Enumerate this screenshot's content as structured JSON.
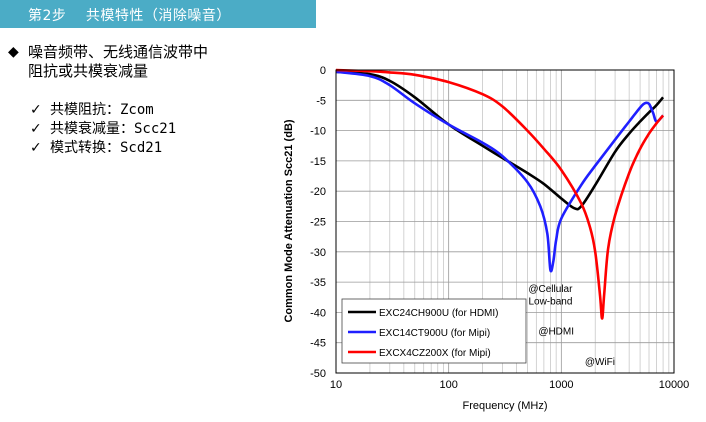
{
  "header": {
    "title": "第2步　 共模特性（消除噪音）"
  },
  "main_bullet": {
    "line1": "噪音频带、无线通信波带中",
    "line2": "阻抗或共模衰减量"
  },
  "sub_items": [
    {
      "label": "共模阻抗：Zcom"
    },
    {
      "label": "共模衰减量：Scc21"
    },
    {
      "label": "模式转换：Scd21"
    }
  ],
  "chart_data": {
    "type": "line",
    "xlabel": "Frequency (MHz)",
    "ylabel": "Common Mode Attenuation Scc21 (dB)",
    "x_scale": "log",
    "xlim": [
      10,
      10000
    ],
    "ylim": [
      -50,
      0
    ],
    "x_ticks": [
      "10",
      "100",
      "1000",
      "10000"
    ],
    "y_ticks": [
      "0",
      "-5",
      "-10",
      "-15",
      "-20",
      "-25",
      "-30",
      "-35",
      "-40",
      "-45",
      "-50"
    ],
    "grid": true,
    "legend_position": "bottom-left",
    "series": [
      {
        "name": "EXC24CH900U (for HDMI)",
        "color": "#000000",
        "x": [
          10,
          20,
          30,
          50,
          100,
          200,
          300,
          500,
          700,
          1000,
          1300,
          1500,
          2000,
          3000,
          4000,
          5000,
          6000,
          7000,
          8000
        ],
        "y": [
          -0.3,
          -0.7,
          -1.8,
          -4.5,
          -9.0,
          -12.5,
          -14.5,
          -17.0,
          -18.8,
          -21.2,
          -22.8,
          -22.5,
          -19.0,
          -13.5,
          -10.5,
          -8.5,
          -7.0,
          -5.8,
          -4.5
        ]
      },
      {
        "name": "EXC14CT900U (for Mipi)",
        "color": "#1f1fff",
        "x": [
          10,
          20,
          30,
          50,
          100,
          200,
          300,
          500,
          650,
          750,
          800,
          850,
          900,
          1000,
          1500,
          2000,
          3000,
          4000,
          5000,
          5500,
          6000,
          6500,
          7000,
          8000
        ],
        "y": [
          -0.3,
          -1.0,
          -2.5,
          -5.5,
          -9.0,
          -12.0,
          -14.2,
          -18.5,
          -22.5,
          -27.0,
          -33.0,
          -31.5,
          -28.0,
          -24.5,
          -19.0,
          -15.8,
          -11.5,
          -8.5,
          -6.2,
          -5.5,
          -5.6,
          -7.0,
          -8.5,
          -7.5
        ]
      },
      {
        "name": "EXCX4CZ200X (for Mipi)",
        "color": "#ff0000",
        "x": [
          10,
          20,
          30,
          50,
          100,
          200,
          300,
          500,
          700,
          1000,
          1500,
          1800,
          2000,
          2200,
          2300,
          2400,
          2600,
          3000,
          4000,
          5000,
          6000,
          7000,
          8000
        ],
        "y": [
          0,
          -0.2,
          -0.4,
          -0.8,
          -2.0,
          -4.0,
          -6.0,
          -10.0,
          -13.0,
          -16.5,
          -22.0,
          -26.0,
          -30.0,
          -37.0,
          -41.0,
          -37.0,
          -29.5,
          -24.0,
          -17.0,
          -13.0,
          -10.5,
          -8.8,
          -7.5
        ]
      }
    ],
    "annotations": [
      {
        "text": "@Cellular",
        "x": 800,
        "y": -36
      },
      {
        "text": "Low-band",
        "x": 800,
        "y": -38
      },
      {
        "text": "@HDMI",
        "x": 900,
        "y": -43
      },
      {
        "text": "@WiFi",
        "x": 2200,
        "y": -48
      }
    ]
  }
}
